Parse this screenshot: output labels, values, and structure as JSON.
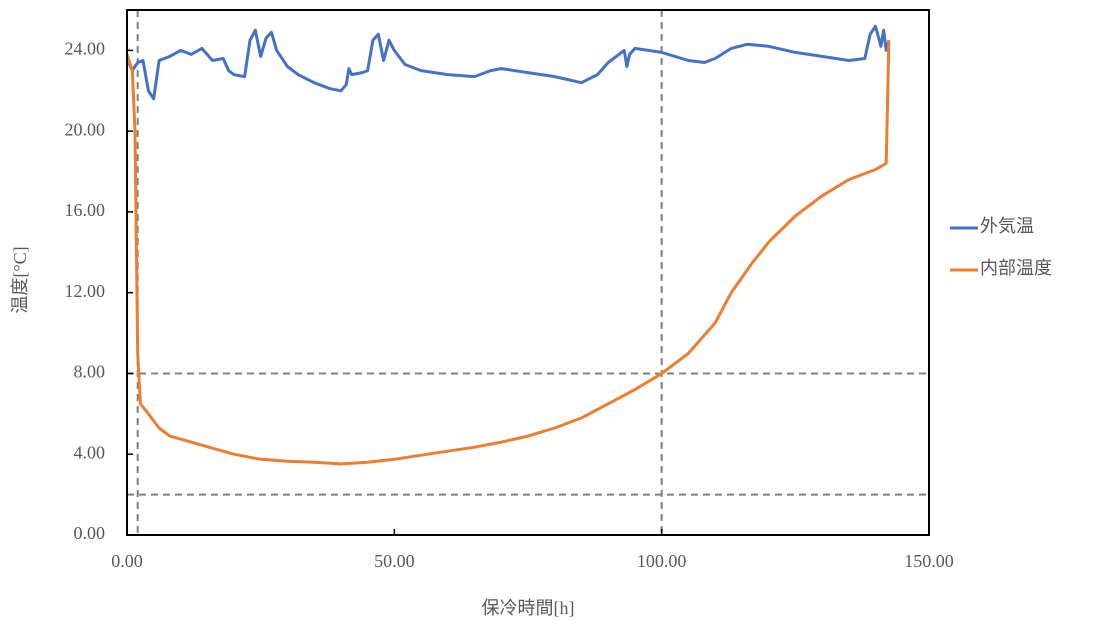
{
  "chart_data": {
    "type": "line",
    "x_label": "保冷時間[h]",
    "y_label": "温度[°C]",
    "xlim": [
      0,
      150
    ],
    "ylim": [
      0,
      26
    ],
    "xticks": [
      {
        "value": 0,
        "label": "0.00"
      },
      {
        "value": 50,
        "label": "50.00"
      },
      {
        "value": 100,
        "label": "100.00"
      },
      {
        "value": 150,
        "label": "150.00"
      }
    ],
    "yticks": [
      {
        "value": 0,
        "label": "0.00"
      },
      {
        "value": 4,
        "label": "4.00"
      },
      {
        "value": 8,
        "label": "8.00"
      },
      {
        "value": 12,
        "label": "12.00"
      },
      {
        "value": 16,
        "label": "16.00"
      },
      {
        "value": 20,
        "label": "20.00"
      },
      {
        "value": 24,
        "label": "24.00"
      }
    ],
    "reference_lines": {
      "y": [
        8,
        2
      ],
      "x": [
        2,
        100
      ],
      "color": "#808080"
    },
    "legend": "right",
    "series": [
      {
        "name": "外気温",
        "color": "#4472c4",
        "x": [
          0,
          1,
          2,
          3,
          4,
          5,
          6,
          8,
          10,
          12,
          14,
          16,
          18,
          19,
          20,
          22,
          23,
          24,
          25,
          26,
          27,
          28,
          30,
          32,
          35,
          38,
          40,
          41,
          41.5,
          42,
          44,
          45,
          46,
          47,
          48,
          49,
          50,
          52,
          55,
          60,
          65,
          68,
          70,
          75,
          80,
          85,
          88,
          90,
          92,
          93,
          93.5,
          94,
          95,
          100,
          105,
          108,
          110,
          113,
          116,
          120,
          125,
          130,
          135,
          138,
          139,
          140,
          141,
          141.5,
          142,
          142.5
        ],
        "values": [
          23.6,
          23.0,
          23.4,
          23.5,
          22.0,
          21.6,
          23.5,
          23.7,
          24.0,
          23.8,
          24.1,
          23.5,
          23.6,
          23.0,
          22.8,
          22.7,
          24.5,
          25.0,
          23.7,
          24.6,
          24.9,
          24.0,
          23.2,
          22.8,
          22.4,
          22.1,
          22.0,
          22.3,
          23.1,
          22.8,
          22.9,
          23.0,
          24.5,
          24.8,
          23.5,
          24.5,
          24.0,
          23.3,
          23.0,
          22.8,
          22.7,
          23.0,
          23.1,
          22.9,
          22.7,
          22.4,
          22.8,
          23.4,
          23.8,
          24.0,
          23.2,
          23.8,
          24.1,
          23.9,
          23.5,
          23.4,
          23.6,
          24.1,
          24.3,
          24.2,
          23.9,
          23.7,
          23.5,
          23.6,
          24.8,
          25.2,
          24.2,
          25.0,
          24.0,
          24.5
        ]
      },
      {
        "name": "内部温度",
        "color": "#ed7d31",
        "x": [
          0,
          1,
          1.5,
          2,
          2.5,
          4,
          6,
          8,
          12,
          16,
          20,
          25,
          30,
          35,
          40,
          45,
          50,
          55,
          60,
          65,
          70,
          75,
          80,
          85,
          90,
          95,
          100,
          105,
          110,
          113,
          117,
          120,
          125,
          130,
          135,
          140,
          142,
          142.5
        ],
        "values": [
          23.8,
          23.0,
          20,
          9,
          6.5,
          6.0,
          5.3,
          4.9,
          4.6,
          4.3,
          4.0,
          3.75,
          3.65,
          3.6,
          3.52,
          3.6,
          3.75,
          3.95,
          4.15,
          4.35,
          4.6,
          4.9,
          5.3,
          5.8,
          6.5,
          7.2,
          8.0,
          9.0,
          10.5,
          12.0,
          13.5,
          14.5,
          15.8,
          16.8,
          17.6,
          18.1,
          18.4,
          24.5
        ]
      }
    ]
  }
}
